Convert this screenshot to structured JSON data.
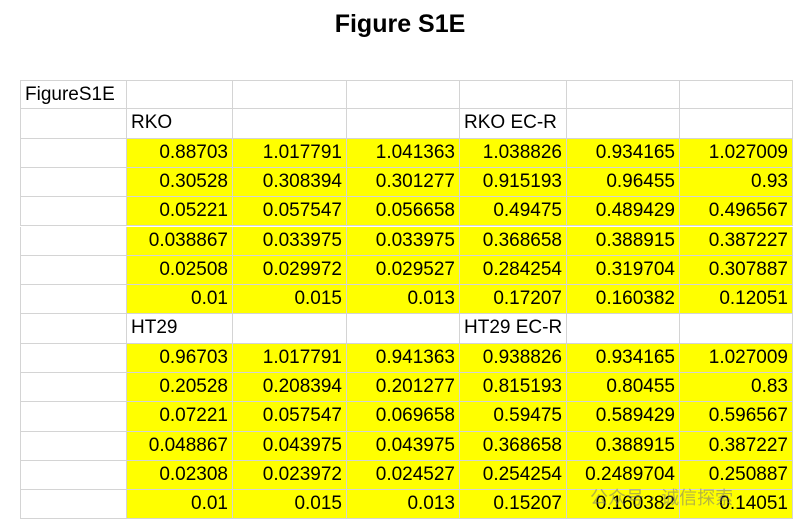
{
  "title": "Figure S1E",
  "table": {
    "label": "FigureS1E",
    "blocks": [
      {
        "left": "RKO",
        "right": "RKO EC-R",
        "rows": [
          [
            0.88703,
            1.017791,
            1.041363,
            1.038826,
            0.934165,
            1.027009
          ],
          [
            0.30528,
            0.308394,
            0.301277,
            0.915193,
            0.96455,
            0.93
          ],
          [
            0.05221,
            0.057547,
            0.056658,
            0.49475,
            0.489429,
            0.496567
          ],
          [
            0.038867,
            0.033975,
            0.033975,
            0.368658,
            0.388915,
            0.387227
          ],
          [
            0.02508,
            0.029972,
            0.029527,
            0.284254,
            0.319704,
            0.307887
          ],
          [
            0.01,
            0.015,
            0.013,
            0.17207,
            0.160382,
            0.12051
          ]
        ]
      },
      {
        "left": "HT29",
        "right": "HT29 EC-R",
        "rows": [
          [
            0.96703,
            1.017791,
            0.941363,
            0.938826,
            0.934165,
            1.027009
          ],
          [
            0.20528,
            0.208394,
            0.201277,
            0.815193,
            0.80455,
            0.83
          ],
          [
            0.07221,
            0.057547,
            0.069658,
            0.59475,
            0.589429,
            0.596567
          ],
          [
            0.048867,
            0.043975,
            0.043975,
            0.368658,
            0.388915,
            0.387227
          ],
          [
            0.02308,
            0.023972,
            0.024527,
            0.254254,
            0.2489704,
            0.250887
          ],
          [
            0.01,
            0.015,
            0.013,
            0.15207,
            0.160382,
            0.14051
          ]
        ]
      }
    ]
  },
  "watermark": "公众号 · 诚信探索"
}
